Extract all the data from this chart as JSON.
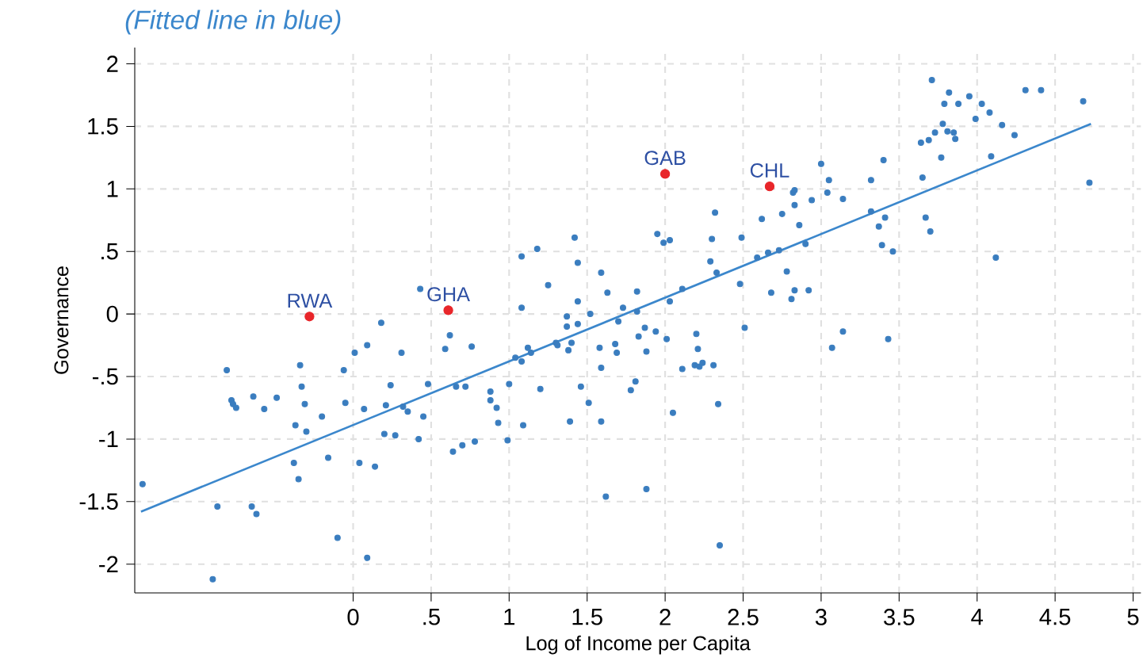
{
  "chart_data": {
    "type": "scatter",
    "title": "(Fitted line in blue)",
    "xlabel": "Log of Income per Capita",
    "ylabel": "Governance",
    "xlim": [
      -1.4,
      5.05
    ],
    "ylim": [
      -2.23,
      2.13
    ],
    "xticks": [
      0,
      {
        "value": 0.5,
        "label": ".5"
      },
      1,
      1.5,
      2,
      2.5,
      3,
      3.5,
      4,
      4.5,
      5
    ],
    "yticks": [
      -2,
      -1.5,
      -1,
      {
        "value": -0.5,
        "label": "-.5"
      },
      0,
      {
        "value": 0.5,
        "label": ".5"
      },
      1,
      1.5,
      2
    ],
    "grid": true,
    "marker": "circle",
    "series": [
      {
        "color": "#3a7dbf",
        "x": [
          0.43,
          0.18,
          2.82,
          2.83,
          2.32,
          2.62,
          2.75,
          2.83,
          2.86,
          1.95,
          1.99,
          2.03,
          2.3,
          2.49,
          1.42,
          1.08,
          1.18,
          1.44,
          1.59,
          2.29,
          2.33,
          2.59,
          2.66,
          2.73,
          2.78,
          1.25,
          1.63,
          1.82,
          2.11,
          2.48,
          2.68,
          2.83,
          2.81,
          1.08,
          1.44,
          1.52,
          1.37,
          1.73,
          1.82,
          2.03,
          3.71,
          4.31,
          4.41,
          4.68,
          3.82,
          3.79,
          3.88,
          3.95,
          4.03,
          3.99,
          4.08,
          3.78,
          3.81,
          3.85,
          3.73,
          3.86,
          3.69,
          3.64,
          4.16,
          4.24,
          4.09,
          3.77,
          3.0,
          3.4,
          3.65,
          3.32,
          3.05,
          3.04,
          2.94,
          3.14,
          3.32,
          3.41,
          3.37,
          3.67,
          3.7,
          2.9,
          3.39,
          3.46,
          4.72,
          4.12,
          2.92,
          3.07,
          3.14,
          3.43,
          -0.81,
          -0.78,
          -0.77,
          -0.75,
          -0.64,
          -0.57,
          -0.49,
          -0.34,
          -0.33,
          -0.31,
          -0.37,
          -0.3,
          -0.2,
          -0.38,
          -0.35,
          -0.16,
          -0.06,
          -0.05,
          0.01,
          0.09,
          0.07,
          0.31,
          0.24,
          0.21,
          0.32,
          0.35,
          0.2,
          0.27,
          0.45,
          0.42,
          0.48,
          0.04,
          0.14,
          0.59,
          0.62,
          0.66,
          0.72,
          0.64,
          0.7,
          -1.35,
          -0.87,
          -0.65,
          -0.62,
          -0.1,
          0.09,
          -0.9,
          1.7,
          1.44,
          1.37,
          0.76,
          1.04,
          1.08,
          1.12,
          1.14,
          1.3,
          1.31,
          1.38,
          1.4,
          1.58,
          1.59,
          1.68,
          1.69,
          1.83,
          1.87,
          1.88,
          1.94,
          2.01,
          2.2,
          2.21,
          2.11,
          2.19,
          2.22,
          2.24,
          2.31,
          2.51,
          2.34,
          2.05,
          1.81,
          1.78,
          1.46,
          1.51,
          1.2,
          1.0,
          0.88,
          0.88,
          0.92,
          0.93,
          1.09,
          0.99,
          0.78,
          1.39,
          1.59,
          1.62,
          1.88,
          2.35
        ],
        "values": [
          0.2,
          -0.07,
          0.97,
          0.99,
          0.81,
          0.76,
          0.8,
          0.87,
          0.71,
          0.64,
          0.57,
          0.59,
          0.6,
          0.61,
          0.61,
          0.46,
          0.52,
          0.41,
          0.33,
          0.42,
          0.33,
          0.45,
          0.49,
          0.51,
          0.34,
          0.23,
          0.17,
          0.18,
          0.2,
          0.24,
          0.17,
          0.19,
          0.12,
          0.05,
          0.1,
          0.0,
          -0.02,
          0.05,
          0.02,
          0.1,
          1.87,
          1.79,
          1.79,
          1.7,
          1.77,
          1.68,
          1.68,
          1.74,
          1.68,
          1.56,
          1.61,
          1.52,
          1.46,
          1.45,
          1.45,
          1.4,
          1.39,
          1.37,
          1.51,
          1.43,
          1.26,
          1.25,
          1.2,
          1.23,
          1.09,
          1.07,
          1.07,
          0.97,
          0.91,
          0.92,
          0.82,
          0.77,
          0.7,
          0.77,
          0.66,
          0.56,
          0.55,
          0.5,
          1.05,
          0.45,
          0.19,
          -0.27,
          -0.14,
          -0.2,
          -0.45,
          -0.69,
          -0.72,
          -0.75,
          -0.66,
          -0.76,
          -0.67,
          -0.41,
          -0.58,
          -0.72,
          -0.89,
          -0.94,
          -0.82,
          -1.19,
          -1.32,
          -1.15,
          -0.45,
          -0.71,
          -0.31,
          -0.25,
          -0.76,
          -0.31,
          -0.57,
          -0.73,
          -0.74,
          -0.78,
          -0.96,
          -0.97,
          -0.82,
          -1.0,
          -0.56,
          -1.19,
          -1.22,
          -0.28,
          -0.17,
          -0.58,
          -0.58,
          -1.1,
          -1.05,
          -1.36,
          -1.54,
          -1.54,
          -1.6,
          -1.79,
          -1.95,
          -2.12,
          -0.06,
          -0.08,
          -0.1,
          -0.26,
          -0.35,
          -0.38,
          -0.27,
          -0.31,
          -0.23,
          -0.25,
          -0.29,
          -0.23,
          -0.27,
          -0.43,
          -0.24,
          -0.31,
          -0.18,
          -0.11,
          -0.3,
          -0.14,
          -0.2,
          -0.16,
          -0.28,
          -0.44,
          -0.41,
          -0.42,
          -0.39,
          -0.41,
          -0.11,
          -0.72,
          -0.79,
          -0.54,
          -0.61,
          -0.58,
          -0.71,
          -0.6,
          -0.56,
          -0.62,
          -0.69,
          -0.75,
          -0.87,
          -0.89,
          -1.01,
          -1.02,
          -0.86,
          -0.86,
          -1.46,
          -1.4,
          -1.85
        ]
      },
      {
        "color": "#e8262a",
        "x": [
          -0.28,
          0.61,
          2.0,
          2.67
        ],
        "values": [
          -0.02,
          0.03,
          1.12,
          1.02
        ]
      },
      {
        "type": "line",
        "marker": "none",
        "color": "#3b87cc",
        "x": [
          -1.36,
          4.73
        ],
        "values": [
          -1.58,
          1.52
        ]
      }
    ],
    "annotations": [
      {
        "text": "RWA",
        "x": -0.28,
        "y": -0.02
      },
      {
        "text": "GHA",
        "x": 0.61,
        "y": 0.03
      },
      {
        "text": "GAB",
        "x": 2.0,
        "y": 1.12
      },
      {
        "text": "CHL",
        "x": 2.67,
        "y": 1.02
      }
    ]
  }
}
